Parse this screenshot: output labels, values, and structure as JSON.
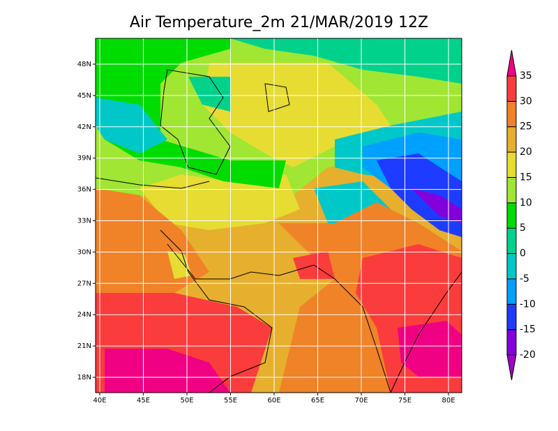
{
  "title": "Air Temperature_2m 21/MAR/2019 12Z",
  "map": {
    "lat_labels": [
      "18N",
      "21N",
      "24N",
      "27N",
      "30N",
      "33N",
      "36N",
      "39N",
      "42N",
      "45N",
      "48N"
    ],
    "lon_labels": [
      "40E",
      "45E",
      "50E",
      "55E",
      "60E",
      "65E",
      "70E",
      "75E",
      "80E"
    ]
  },
  "colorbar": {
    "levels": [
      -20,
      -15,
      -10,
      -5,
      0,
      5,
      10,
      15,
      20,
      25,
      30,
      35
    ],
    "colors": [
      "#a000c8",
      "#8200dc",
      "#1e3cff",
      "#00a0ff",
      "#00c8c8",
      "#00d28c",
      "#00dc00",
      "#a0e632",
      "#e6dc32",
      "#e6af2d",
      "#f08228",
      "#fa3c3c",
      "#f00082"
    ]
  }
}
